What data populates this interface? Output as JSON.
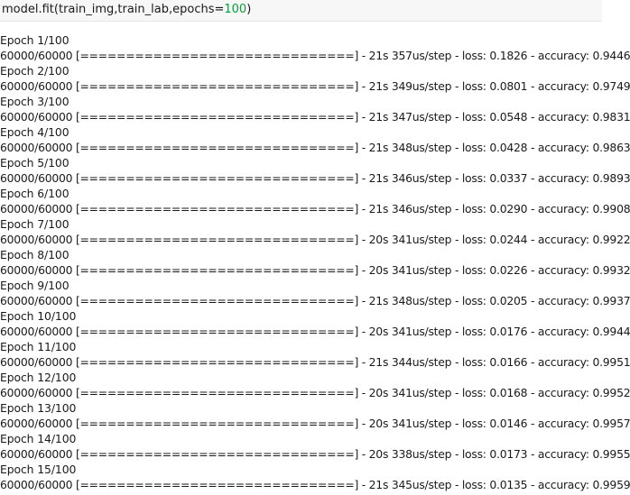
{
  "code": {
    "prefix": "model.fit(train_img,train_lab,epochs=",
    "number": "100",
    "suffix": ")"
  },
  "epochs": [
    {
      "epoch_label": "Epoch 1/100",
      "progress": "60000/60000 [==============================] - 21s 357us/step - loss: 0.1826 - accuracy: 0.9446"
    },
    {
      "epoch_label": "Epoch 2/100",
      "progress": "60000/60000 [==============================] - 21s 349us/step - loss: 0.0801 - accuracy: 0.9749"
    },
    {
      "epoch_label": "Epoch 3/100",
      "progress": "60000/60000 [==============================] - 21s 347us/step - loss: 0.0548 - accuracy: 0.9831"
    },
    {
      "epoch_label": "Epoch 4/100",
      "progress": "60000/60000 [==============================] - 21s 348us/step - loss: 0.0428 - accuracy: 0.9863"
    },
    {
      "epoch_label": "Epoch 5/100",
      "progress": "60000/60000 [==============================] - 21s 346us/step - loss: 0.0337 - accuracy: 0.9893"
    },
    {
      "epoch_label": "Epoch 6/100",
      "progress": "60000/60000 [==============================] - 21s 346us/step - loss: 0.0290 - accuracy: 0.9908"
    },
    {
      "epoch_label": "Epoch 7/100",
      "progress": "60000/60000 [==============================] - 20s 341us/step - loss: 0.0244 - accuracy: 0.9922"
    },
    {
      "epoch_label": "Epoch 8/100",
      "progress": "60000/60000 [==============================] - 20s 341us/step - loss: 0.0226 - accuracy: 0.9932"
    },
    {
      "epoch_label": "Epoch 9/100",
      "progress": "60000/60000 [==============================] - 21s 348us/step - loss: 0.0205 - accuracy: 0.9937"
    },
    {
      "epoch_label": "Epoch 10/100",
      "progress": "60000/60000 [==============================] - 20s 341us/step - loss: 0.0176 - accuracy: 0.9944"
    },
    {
      "epoch_label": "Epoch 11/100",
      "progress": "60000/60000 [==============================] - 21s 344us/step - loss: 0.0166 - accuracy: 0.9951"
    },
    {
      "epoch_label": "Epoch 12/100",
      "progress": "60000/60000 [==============================] - 20s 341us/step - loss: 0.0168 - accuracy: 0.9952"
    },
    {
      "epoch_label": "Epoch 13/100",
      "progress": "60000/60000 [==============================] - 20s 341us/step - loss: 0.0146 - accuracy: 0.9957"
    },
    {
      "epoch_label": "Epoch 14/100",
      "progress": "60000/60000 [==============================] - 20s 338us/step - loss: 0.0173 - accuracy: 0.9955"
    },
    {
      "epoch_label": "Epoch 15/100",
      "progress": "60000/60000 [==============================] - 21s 345us/step - loss: 0.0135 - accuracy: 0.9959"
    }
  ]
}
